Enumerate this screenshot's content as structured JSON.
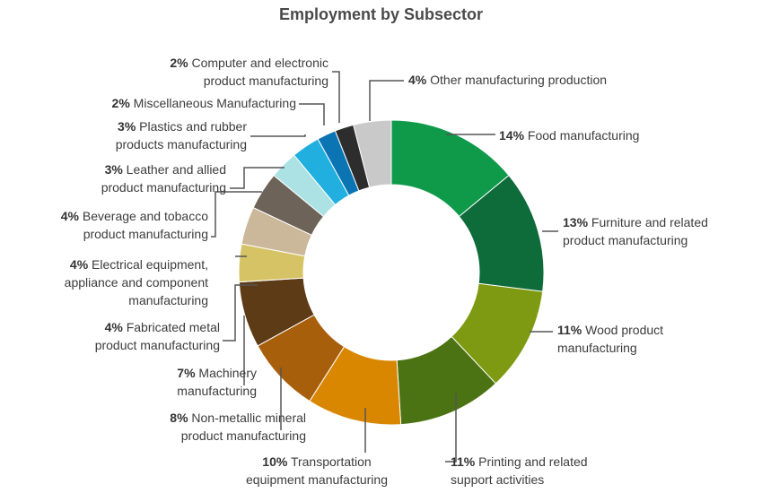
{
  "chart_data": {
    "type": "pie",
    "variant": "donut",
    "title": "Employment by Subsector",
    "slices": [
      {
        "pct": "14%",
        "value": 14,
        "line1": "Food manufacturing",
        "line2": "",
        "color": "#0f9a4a"
      },
      {
        "pct": "13%",
        "value": 13,
        "line1": "Furniture and related",
        "line2": "product manufacturing",
        "color": "#0e6b3a"
      },
      {
        "pct": "11%",
        "value": 11,
        "line1": "Wood product",
        "line2": "manufacturing",
        "color": "#7e9a12"
      },
      {
        "pct": "11%",
        "value": 11,
        "line1": "Printing and related",
        "line2": "support activities",
        "color": "#4c7313"
      },
      {
        "pct": "10%",
        "value": 10,
        "line1": "Transportation",
        "line2": "equipment manufacturing",
        "color": "#d98700"
      },
      {
        "pct": "8%",
        "value": 8,
        "line1": "Non-metallic mineral",
        "line2": "product manufacturing",
        "color": "#a85f0c"
      },
      {
        "pct": "7%",
        "value": 7,
        "line1": "Machinery",
        "line2": "manufacturing",
        "color": "#5e3b17"
      },
      {
        "pct": "4%",
        "value": 4,
        "line1": "Fabricated metal",
        "line2": "product manufacturing",
        "color": "#d6c365"
      },
      {
        "pct": "4%",
        "value": 4,
        "line1": "Electrical equipment,",
        "line2": "appliance and component",
        "line3": "manufacturing",
        "color": "#cbb89a"
      },
      {
        "pct": "4%",
        "value": 4,
        "line1": "Beverage and tobacco",
        "line2": "product manufacturing",
        "color": "#6d6358"
      },
      {
        "pct": "3%",
        "value": 3,
        "line1": "Leather and allied",
        "line2": "product manufacturing",
        "color": "#ade2e5"
      },
      {
        "pct": "3%",
        "value": 3,
        "line1": "Plastics and rubber",
        "line2": "products manufacturing",
        "color": "#21afe0"
      },
      {
        "pct": "2%",
        "value": 2,
        "line1": "Miscellaneous Manufacturing",
        "line2": "",
        "color": "#0b75b3"
      },
      {
        "pct": "2%",
        "value": 2,
        "line1": "Computer and electronic",
        "line2": "product manufacturing",
        "color": "#2d2d2d"
      },
      {
        "pct": "4%",
        "value": 4,
        "line1": "Other manufacturing production",
        "line2": "",
        "color": "#c9c9c9"
      }
    ]
  }
}
